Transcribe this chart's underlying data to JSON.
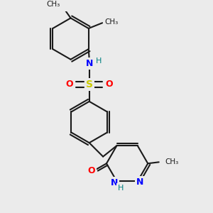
{
  "background_color": "#ebebeb",
  "bond_color": "#1a1a1a",
  "bond_lw": 1.5,
  "figsize": [
    3.0,
    3.0
  ],
  "dpi": 100,
  "atom_colors": {
    "N": "#0000ff",
    "O": "#ff0000",
    "S": "#cccc00",
    "H_NH": "#008080",
    "C": "#1a1a1a"
  },
  "ring_r": 0.3,
  "xlim": [
    0.05,
    2.95
  ],
  "ylim": [
    0.1,
    3.0
  ]
}
